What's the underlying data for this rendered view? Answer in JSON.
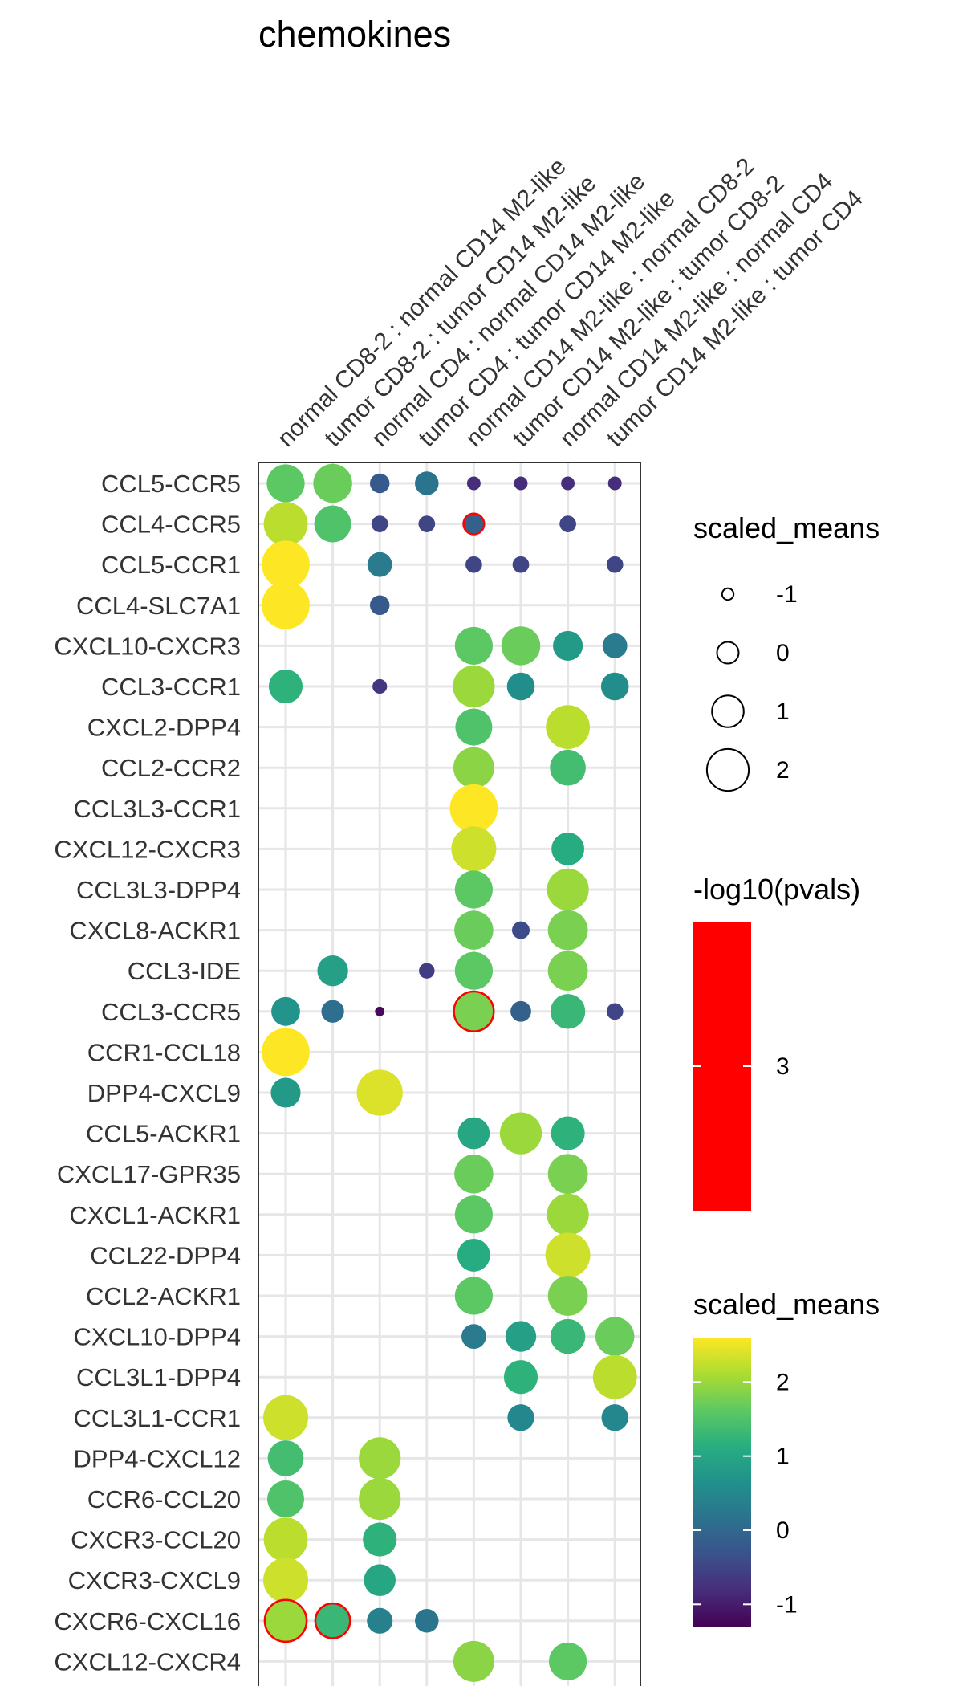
{
  "chart_data": {
    "type": "scatter",
    "title": "chemokines",
    "xlabel": "",
    "ylabel": "",
    "grid": true,
    "legend_position": "right",
    "columns": [
      "normal CD8-2 : normal CD14 M2-like",
      "tumor CD8-2 : tumor CD14 M2-like",
      "normal CD4 : normal CD14 M2-like",
      "tumor CD4 : tumor CD14 M2-like",
      "normal CD14 M2-like : normal CD8-2",
      "tumor CD14 M2-like : tumor CD8-2",
      "normal CD14 M2-like : normal CD4",
      "tumor CD14 M2-like : tumor CD4"
    ],
    "rows": [
      "CCL5-CCR5",
      "CCL4-CCR5",
      "CCL5-CCR1",
      "CCL4-SLC7A1",
      "CXCL10-CXCR3",
      "CCL3-CCR1",
      "CXCL2-DPP4",
      "CCL2-CCR2",
      "CCL3L3-CCR1",
      "CXCL12-CXCR3",
      "CCL3L3-DPP4",
      "CXCL8-ACKR1",
      "CCL3-IDE",
      "CCL3-CCR5",
      "CCR1-CCL18",
      "DPP4-CXCL9",
      "CCL5-ACKR1",
      "CXCL17-GPR35",
      "CXCL1-ACKR1",
      "CCL22-DPP4",
      "CCL2-ACKR1",
      "CXCL10-DPP4",
      "CCL3L1-DPP4",
      "CCL3L1-CCR1",
      "DPP4-CXCL12",
      "CCR6-CCL20",
      "CXCR3-CCL20",
      "CXCR3-CXCL9",
      "CXCR6-CXCL16",
      "CXCL12-CXCR4"
    ],
    "points": [
      {
        "row": 0,
        "col": 0,
        "value": 1.6
      },
      {
        "row": 0,
        "col": 1,
        "value": 1.7
      },
      {
        "row": 0,
        "col": 2,
        "value": -0.2
      },
      {
        "row": 0,
        "col": 3,
        "value": 0.2
      },
      {
        "row": 0,
        "col": 4,
        "value": -0.8
      },
      {
        "row": 0,
        "col": 5,
        "value": -0.8
      },
      {
        "row": 0,
        "col": 6,
        "value": -0.8
      },
      {
        "row": 0,
        "col": 7,
        "value": -0.8
      },
      {
        "row": 1,
        "col": 0,
        "value": 2.2
      },
      {
        "row": 1,
        "col": 1,
        "value": 1.5
      },
      {
        "row": 1,
        "col": 2,
        "value": -0.5
      },
      {
        "row": 1,
        "col": 3,
        "value": -0.5
      },
      {
        "row": 1,
        "col": 4,
        "value": -0.1,
        "significant": true
      },
      {
        "row": 1,
        "col": 6,
        "value": -0.5
      },
      {
        "row": 2,
        "col": 0,
        "value": 2.6
      },
      {
        "row": 2,
        "col": 2,
        "value": 0.3
      },
      {
        "row": 2,
        "col": 4,
        "value": -0.5
      },
      {
        "row": 2,
        "col": 5,
        "value": -0.5
      },
      {
        "row": 2,
        "col": 7,
        "value": -0.5
      },
      {
        "row": 3,
        "col": 0,
        "value": 2.6
      },
      {
        "row": 3,
        "col": 2,
        "value": -0.2
      },
      {
        "row": 4,
        "col": 4,
        "value": 1.6
      },
      {
        "row": 4,
        "col": 5,
        "value": 1.7
      },
      {
        "row": 4,
        "col": 6,
        "value": 0.8
      },
      {
        "row": 4,
        "col": 7,
        "value": 0.3
      },
      {
        "row": 5,
        "col": 0,
        "value": 1.2
      },
      {
        "row": 5,
        "col": 2,
        "value": -0.7
      },
      {
        "row": 5,
        "col": 4,
        "value": 2.0
      },
      {
        "row": 5,
        "col": 5,
        "value": 0.6
      },
      {
        "row": 5,
        "col": 7,
        "value": 0.6
      },
      {
        "row": 6,
        "col": 4,
        "value": 1.5
      },
      {
        "row": 6,
        "col": 6,
        "value": 2.2
      },
      {
        "row": 7,
        "col": 4,
        "value": 1.9
      },
      {
        "row": 7,
        "col": 6,
        "value": 1.4
      },
      {
        "row": 8,
        "col": 4,
        "value": 2.6
      },
      {
        "row": 9,
        "col": 4,
        "value": 2.3
      },
      {
        "row": 9,
        "col": 6,
        "value": 1.1
      },
      {
        "row": 10,
        "col": 4,
        "value": 1.6
      },
      {
        "row": 10,
        "col": 6,
        "value": 2.0
      },
      {
        "row": 11,
        "col": 4,
        "value": 1.7
      },
      {
        "row": 11,
        "col": 5,
        "value": -0.4
      },
      {
        "row": 11,
        "col": 6,
        "value": 1.8
      },
      {
        "row": 12,
        "col": 1,
        "value": 0.9
      },
      {
        "row": 12,
        "col": 3,
        "value": -0.6
      },
      {
        "row": 12,
        "col": 4,
        "value": 1.6
      },
      {
        "row": 12,
        "col": 6,
        "value": 1.8
      },
      {
        "row": 13,
        "col": 0,
        "value": 0.7
      },
      {
        "row": 13,
        "col": 1,
        "value": 0.1
      },
      {
        "row": 13,
        "col": 2,
        "value": -1.2
      },
      {
        "row": 13,
        "col": 4,
        "value": 1.8,
        "significant": true
      },
      {
        "row": 13,
        "col": 5,
        "value": -0.1
      },
      {
        "row": 13,
        "col": 6,
        "value": 1.3
      },
      {
        "row": 13,
        "col": 7,
        "value": -0.5
      },
      {
        "row": 14,
        "col": 0,
        "value": 2.6
      },
      {
        "row": 15,
        "col": 0,
        "value": 0.8
      },
      {
        "row": 15,
        "col": 2,
        "value": 2.4
      },
      {
        "row": 16,
        "col": 4,
        "value": 1.0
      },
      {
        "row": 16,
        "col": 5,
        "value": 2.0
      },
      {
        "row": 16,
        "col": 6,
        "value": 1.2
      },
      {
        "row": 17,
        "col": 4,
        "value": 1.7
      },
      {
        "row": 17,
        "col": 6,
        "value": 1.8
      },
      {
        "row": 18,
        "col": 4,
        "value": 1.6
      },
      {
        "row": 18,
        "col": 6,
        "value": 2.0
      },
      {
        "row": 19,
        "col": 4,
        "value": 1.1
      },
      {
        "row": 19,
        "col": 6,
        "value": 2.3
      },
      {
        "row": 20,
        "col": 4,
        "value": 1.6
      },
      {
        "row": 20,
        "col": 6,
        "value": 1.8
      },
      {
        "row": 21,
        "col": 4,
        "value": 0.3
      },
      {
        "row": 21,
        "col": 5,
        "value": 0.9
      },
      {
        "row": 21,
        "col": 6,
        "value": 1.3
      },
      {
        "row": 21,
        "col": 7,
        "value": 1.7
      },
      {
        "row": 22,
        "col": 5,
        "value": 1.2
      },
      {
        "row": 22,
        "col": 7,
        "value": 2.2
      },
      {
        "row": 23,
        "col": 0,
        "value": 2.3
      },
      {
        "row": 23,
        "col": 5,
        "value": 0.5
      },
      {
        "row": 23,
        "col": 7,
        "value": 0.5
      },
      {
        "row": 24,
        "col": 0,
        "value": 1.4
      },
      {
        "row": 24,
        "col": 2,
        "value": 2.0
      },
      {
        "row": 25,
        "col": 0,
        "value": 1.5
      },
      {
        "row": 25,
        "col": 2,
        "value": 2.0
      },
      {
        "row": 26,
        "col": 0,
        "value": 2.2
      },
      {
        "row": 26,
        "col": 2,
        "value": 1.2
      },
      {
        "row": 27,
        "col": 0,
        "value": 2.3
      },
      {
        "row": 27,
        "col": 2,
        "value": 1.0
      },
      {
        "row": 28,
        "col": 0,
        "value": 2.0,
        "significant": true
      },
      {
        "row": 28,
        "col": 1,
        "value": 1.3,
        "significant": true
      },
      {
        "row": 28,
        "col": 2,
        "value": 0.4
      },
      {
        "row": 28,
        "col": 3,
        "value": 0.2
      },
      {
        "row": 29,
        "col": 4,
        "value": 1.9
      },
      {
        "row": 29,
        "col": 6,
        "value": 1.6
      }
    ],
    "size_legend": {
      "title": "scaled_means",
      "values": [
        -1,
        0,
        1,
        2
      ],
      "labels": [
        "-1",
        "0",
        "1",
        "2"
      ]
    },
    "pval_legend": {
      "title": "-log10(pvals)",
      "tick_values": [
        3
      ],
      "tick_labels": [
        "3"
      ],
      "color": "#ff0000"
    },
    "color_legend": {
      "title": "scaled_means",
      "range": [
        -1.3,
        2.6
      ],
      "tick_values": [
        2,
        1,
        0,
        -1
      ],
      "tick_labels": [
        "2",
        "1",
        "0",
        "-1"
      ]
    }
  }
}
